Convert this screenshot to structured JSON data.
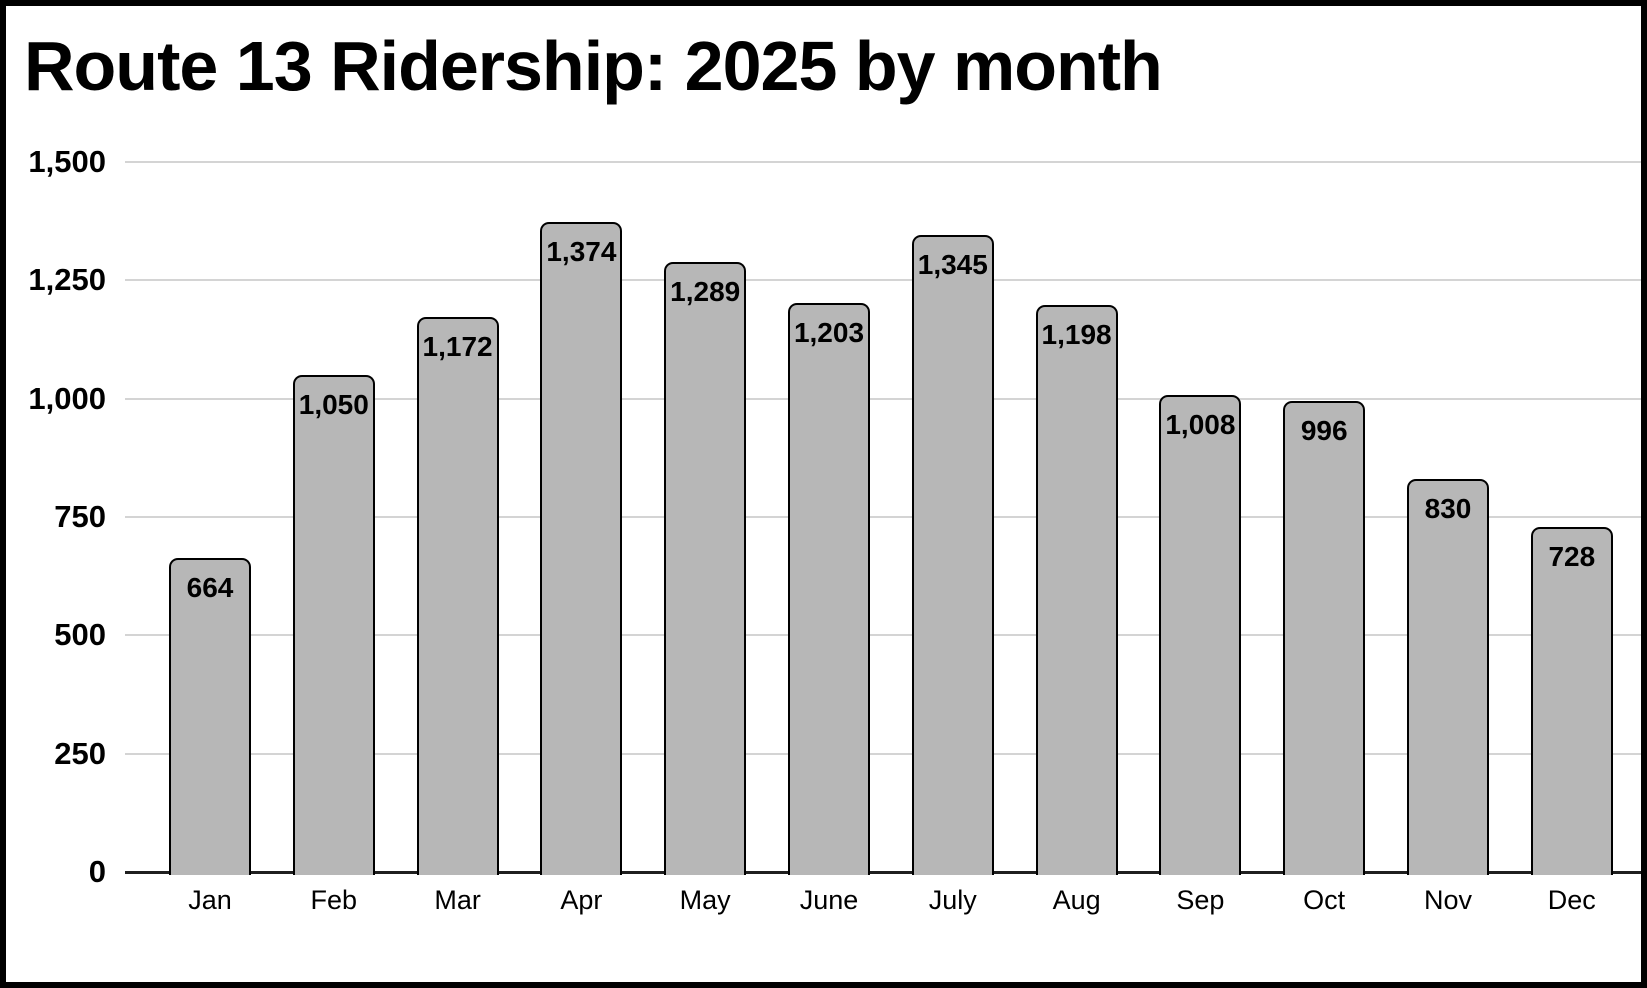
{
  "title": "Route 13 Ridership: 2025 by month",
  "chart_data": {
    "type": "bar",
    "title": "Route 13 Ridership: 2025 by month",
    "categories": [
      "Jan",
      "Feb",
      "Mar",
      "Apr",
      "May",
      "June",
      "July",
      "Aug",
      "Sep",
      "Oct",
      "Nov",
      "Dec"
    ],
    "values": [
      664,
      1050,
      1172,
      1374,
      1289,
      1203,
      1345,
      1198,
      1008,
      996,
      830,
      728
    ],
    "value_labels": [
      "664",
      "1,050",
      "1,172",
      "1,374",
      "1,289",
      "1,203",
      "1,345",
      "1,198",
      "1,008",
      "996",
      "830",
      "728"
    ],
    "xlabel": "",
    "ylabel": "",
    "ylim": [
      0,
      1500
    ],
    "ytick_interval": 250,
    "ytick_labels": [
      "0",
      "250",
      "500",
      "750",
      "1,000",
      "1,250",
      "1,500"
    ],
    "grid": true,
    "legend_position": "none",
    "colors": {
      "bar_fill": "#b7b7b7",
      "bar_border": "#000000",
      "gridline": "#d4d4d4",
      "axis_line": "#1f1f1f",
      "text": "#000000",
      "background": "#ffffff",
      "frame_border": "#000000"
    }
  }
}
